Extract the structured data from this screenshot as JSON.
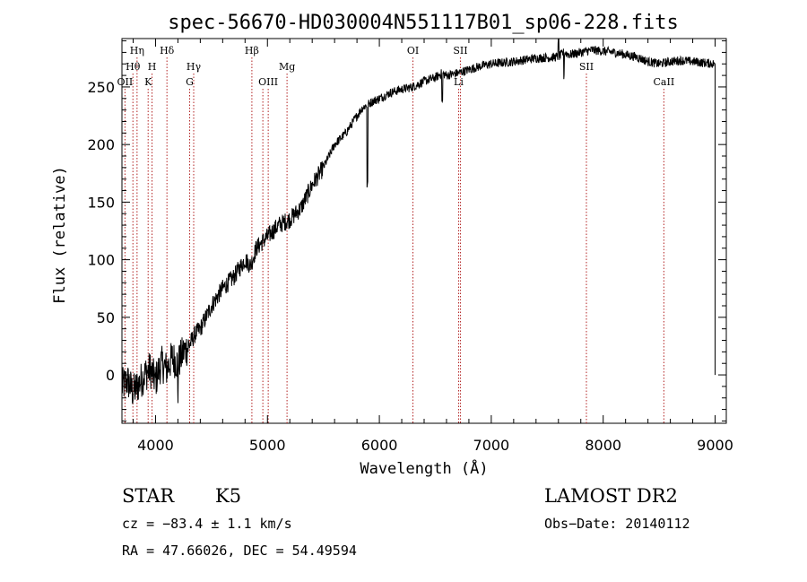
{
  "chart_data": {
    "type": "line",
    "title": "spec-56670-HD030004N551117B01_sp06-228.fits",
    "xlabel": "Wavelength (Å)",
    "ylabel": "Flux (relative)",
    "xlim": [
      3700,
      9100
    ],
    "ylim": [
      -42,
      292
    ],
    "x_ticks": [
      4000,
      5000,
      6000,
      7000,
      8000,
      9000
    ],
    "y_ticks": [
      0,
      50,
      100,
      150,
      200,
      250
    ],
    "x_tick_labels": [
      "4000",
      "5000",
      "6000",
      "7000",
      "8000",
      "9000"
    ],
    "y_tick_labels": [
      "0",
      "50",
      "100",
      "150",
      "200",
      "250"
    ],
    "grid": false,
    "line_color": "#000000",
    "marker_color": "#b22222",
    "series": [
      {
        "x": [
          3700,
          3750,
          3800,
          3850,
          3900,
          3950,
          4000,
          4050,
          4100,
          4150,
          4200,
          4250,
          4300,
          4350,
          4400,
          4450,
          4500,
          4600,
          4700,
          4800,
          4850,
          4900,
          5000,
          5100,
          5200,
          5300,
          5400,
          5500,
          5600,
          5700,
          5800,
          5850,
          5900,
          5950,
          6000,
          6100,
          6200,
          6300,
          6400,
          6500,
          6560,
          6600,
          6700,
          6800,
          6900,
          7000,
          7200,
          7400,
          7600,
          7650,
          7700,
          7800,
          7900,
          8000,
          8100,
          8200,
          8300,
          8400,
          8500,
          8600,
          8700,
          8800,
          8900,
          8990,
          9000
        ],
        "y": [
          -10,
          -5,
          -15,
          -8,
          0,
          5,
          -5,
          10,
          5,
          15,
          10,
          20,
          25,
          35,
          40,
          50,
          60,
          75,
          85,
          100,
          95,
          110,
          120,
          130,
          135,
          145,
          165,
          180,
          200,
          210,
          225,
          232,
          235,
          238,
          240,
          245,
          248,
          250,
          255,
          258,
          262,
          260,
          262,
          265,
          268,
          270,
          272,
          275,
          276,
          280,
          278,
          280,
          282,
          281,
          280,
          278,
          276,
          272,
          270,
          272,
          273,
          272,
          271,
          270,
          0
        ]
      }
    ],
    "line_markers": [
      {
        "x": 3727,
        "label": "OII",
        "row": 3
      },
      {
        "x": 3798,
        "label": "Hθ",
        "row": 2
      },
      {
        "x": 3835,
        "label": "Hη",
        "row": 1
      },
      {
        "x": 3934,
        "label": "K",
        "row": 3
      },
      {
        "x": 3969,
        "label": "H",
        "row": 2
      },
      {
        "x": 4102,
        "label": "Hδ",
        "row": 1
      },
      {
        "x": 4305,
        "label": "G",
        "row": 3
      },
      {
        "x": 4341,
        "label": "Hγ",
        "row": 2
      },
      {
        "x": 4861,
        "label": "Hβ",
        "row": 1
      },
      {
        "x": 4959,
        "label": "",
        "row": 3
      },
      {
        "x": 5007,
        "label": "OIII",
        "row": 3
      },
      {
        "x": 5175,
        "label": "Mg",
        "row": 2
      },
      {
        "x": 6300,
        "label": "OI",
        "row": 1
      },
      {
        "x": 6708,
        "label": "Li",
        "row": 3
      },
      {
        "x": 6724,
        "label": "SII",
        "row": 1
      },
      {
        "x": 7850,
        "label": "SII",
        "row": 2
      },
      {
        "x": 8542,
        "label": "CaII",
        "row": 3
      }
    ]
  },
  "info": {
    "object_class": "STAR",
    "subclass": "K5",
    "survey": "LAMOST DR2",
    "cz": "cz = −83.4 ± 1.1 km/s",
    "obs_date": "Obs−Date: 20140112",
    "coords": "RA =  47.66026, DEC =  54.49594"
  }
}
